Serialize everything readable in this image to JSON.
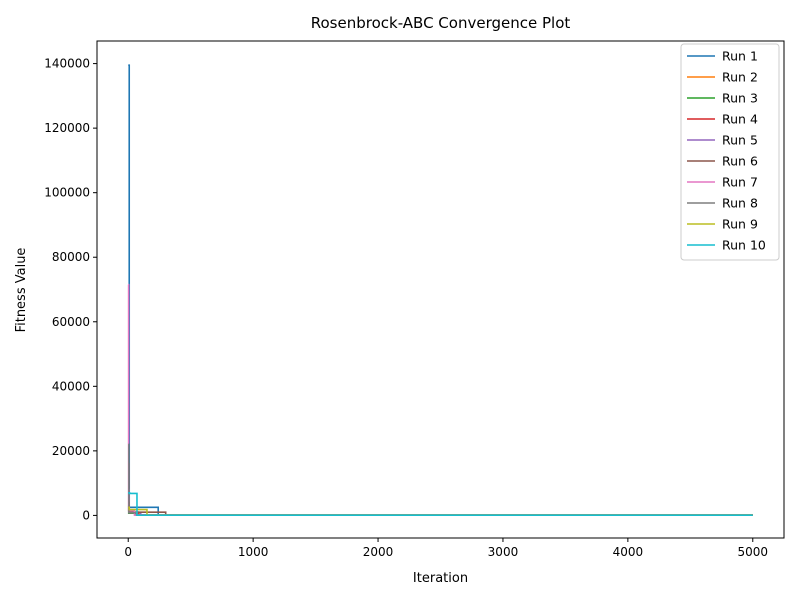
{
  "chart_data": {
    "type": "line",
    "title": "Rosenbrock-ABC Convergence Plot",
    "xlabel": "Iteration",
    "ylabel": "Fitness Value",
    "xlim": [
      -250,
      5250
    ],
    "ylim": [
      -7000,
      147000
    ],
    "xticks": [
      0,
      1000,
      2000,
      3000,
      4000,
      5000
    ],
    "yticks": [
      0,
      20000,
      40000,
      60000,
      80000,
      100000,
      120000,
      140000
    ],
    "legend_position": "top-right",
    "grid": false,
    "colors": [
      "#1f77b4",
      "#ff7f0e",
      "#2ca02c",
      "#d62728",
      "#9467bd",
      "#8c564b",
      "#e377c2",
      "#7f7f7f",
      "#bcbd22",
      "#17becf"
    ],
    "series": [
      {
        "name": "Run 1",
        "x": [
          0,
          8,
          8,
          12,
          12,
          240,
          240,
          5000
        ],
        "y": [
          139500,
          139500,
          2500,
          2500,
          2500,
          2500,
          200,
          200
        ]
      },
      {
        "name": "Run 2",
        "x": [
          0,
          5,
          5,
          90,
          90,
          5000
        ],
        "y": [
          5000,
          5000,
          800,
          800,
          150,
          150
        ]
      },
      {
        "name": "Run 3",
        "x": [
          0,
          4,
          4,
          60,
          60,
          5000
        ],
        "y": [
          3000,
          3000,
          700,
          700,
          100,
          100
        ]
      },
      {
        "name": "Run 4",
        "x": [
          0,
          5,
          5,
          80,
          80,
          5000
        ],
        "y": [
          16000,
          16000,
          1000,
          1000,
          120,
          120
        ]
      },
      {
        "name": "Run 5",
        "x": [
          0,
          6,
          6,
          100,
          100,
          5000
        ],
        "y": [
          8000,
          8000,
          900,
          900,
          110,
          110
        ]
      },
      {
        "name": "Run 6",
        "x": [
          0,
          6,
          6,
          300,
          300,
          5000
        ],
        "y": [
          4000,
          4000,
          1000,
          1000,
          90,
          90
        ]
      },
      {
        "name": "Run 7",
        "x": [
          0,
          3,
          3,
          50,
          50,
          5000
        ],
        "y": [
          71500,
          71500,
          1500,
          1500,
          100,
          100
        ]
      },
      {
        "name": "Run 8",
        "x": [
          0,
          5,
          5,
          70,
          70,
          5000
        ],
        "y": [
          22000,
          22000,
          800,
          800,
          80,
          80
        ]
      },
      {
        "name": "Run 9",
        "x": [
          0,
          8,
          8,
          150,
          150,
          5000
        ],
        "y": [
          2500,
          2500,
          1800,
          1800,
          100,
          100
        ]
      },
      {
        "name": "Run 10",
        "x": [
          0,
          10,
          10,
          70,
          70,
          5000
        ],
        "y": [
          7000,
          7000,
          6800,
          6800,
          60,
          60
        ]
      }
    ]
  }
}
